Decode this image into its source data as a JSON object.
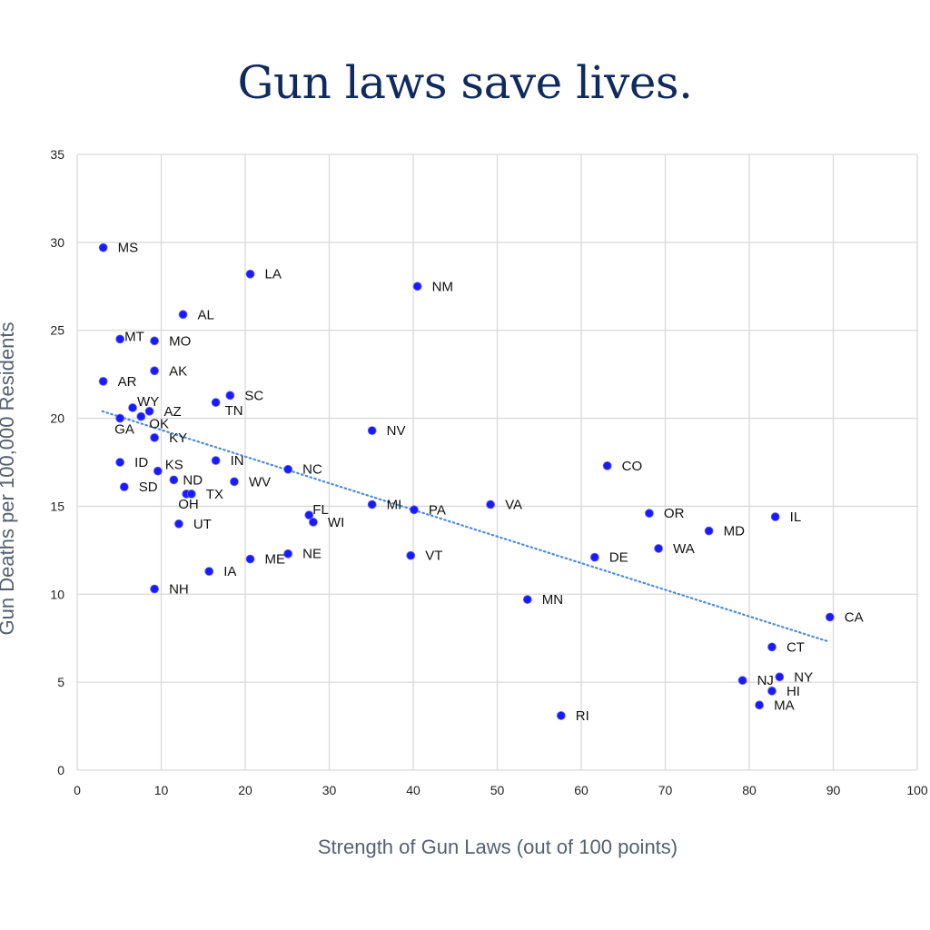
{
  "title": "Gun laws save lives.",
  "chart_data": {
    "type": "scatter",
    "title": "Gun laws save lives.",
    "xlabel": "Strength of Gun Laws (out of 100 points)",
    "ylabel": "Gun Deaths per 100,000 Residents",
    "xlim": [
      0,
      100
    ],
    "ylim": [
      0,
      35
    ],
    "xticks": [
      0,
      10,
      20,
      30,
      40,
      50,
      60,
      70,
      80,
      90,
      100
    ],
    "yticks": [
      0,
      5,
      10,
      15,
      20,
      25,
      30,
      35
    ],
    "grid": true,
    "point_color": "#1a1aff",
    "trendline": {
      "type": "linear",
      "style": "dotted",
      "color": "#4a8be0",
      "x": [
        3,
        89.5
      ],
      "y": [
        20.4,
        7.3
      ]
    },
    "points": [
      {
        "label": "MS",
        "x": 3.1,
        "y": 29.7
      },
      {
        "label": "LA",
        "x": 20.6,
        "y": 28.2
      },
      {
        "label": "NM",
        "x": 40.5,
        "y": 27.5
      },
      {
        "label": "AL",
        "x": 12.6,
        "y": 25.9
      },
      {
        "label": "MT",
        "x": 5.1,
        "y": 24.5
      },
      {
        "label": "MO",
        "x": 9.2,
        "y": 24.4
      },
      {
        "label": "AK",
        "x": 9.2,
        "y": 22.7
      },
      {
        "label": "AR",
        "x": 3.1,
        "y": 22.1
      },
      {
        "label": "SC",
        "x": 18.2,
        "y": 21.3
      },
      {
        "label": "TN",
        "x": 16.5,
        "y": 20.9
      },
      {
        "label": "WY",
        "x": 6.6,
        "y": 20.6
      },
      {
        "label": "AZ",
        "x": 8.6,
        "y": 20.4
      },
      {
        "label": "GA",
        "x": 5.1,
        "y": 20.0
      },
      {
        "label": "OK",
        "x": 7.6,
        "y": 20.1
      },
      {
        "label": "NV",
        "x": 35.1,
        "y": 19.3
      },
      {
        "label": "KY",
        "x": 9.2,
        "y": 18.9
      },
      {
        "label": "ID",
        "x": 5.1,
        "y": 17.5
      },
      {
        "label": "KS",
        "x": 9.6,
        "y": 17.0
      },
      {
        "label": "IN",
        "x": 16.5,
        "y": 17.6
      },
      {
        "label": "NC",
        "x": 25.1,
        "y": 17.1
      },
      {
        "label": "CO",
        "x": 63.1,
        "y": 17.3
      },
      {
        "label": "ND",
        "x": 11.5,
        "y": 16.5
      },
      {
        "label": "WV",
        "x": 18.7,
        "y": 16.4
      },
      {
        "label": "SD",
        "x": 5.6,
        "y": 16.1
      },
      {
        "label": "OH",
        "x": 13.0,
        "y": 15.7
      },
      {
        "label": "TX",
        "x": 13.6,
        "y": 15.7
      },
      {
        "label": "MI",
        "x": 35.1,
        "y": 15.1
      },
      {
        "label": "VA",
        "x": 49.2,
        "y": 15.1
      },
      {
        "label": "PA",
        "x": 40.1,
        "y": 14.8
      },
      {
        "label": "FL",
        "x": 27.6,
        "y": 14.5
      },
      {
        "label": "WI",
        "x": 28.1,
        "y": 14.1
      },
      {
        "label": "OR",
        "x": 68.1,
        "y": 14.6
      },
      {
        "label": "IL",
        "x": 83.1,
        "y": 14.4
      },
      {
        "label": "UT",
        "x": 12.1,
        "y": 14.0
      },
      {
        "label": "MD",
        "x": 75.2,
        "y": 13.6
      },
      {
        "label": "WA",
        "x": 69.2,
        "y": 12.6
      },
      {
        "label": "VT",
        "x": 39.7,
        "y": 12.2
      },
      {
        "label": "DE",
        "x": 61.6,
        "y": 12.1
      },
      {
        "label": "NE",
        "x": 25.1,
        "y": 12.3
      },
      {
        "label": "ME",
        "x": 20.6,
        "y": 12.0
      },
      {
        "label": "IA",
        "x": 15.7,
        "y": 11.3
      },
      {
        "label": "NH",
        "x": 9.2,
        "y": 10.3
      },
      {
        "label": "MN",
        "x": 53.6,
        "y": 9.7
      },
      {
        "label": "CA",
        "x": 89.6,
        "y": 8.7
      },
      {
        "label": "CT",
        "x": 82.7,
        "y": 7.0
      },
      {
        "label": "NJ",
        "x": 79.2,
        "y": 5.1
      },
      {
        "label": "NY",
        "x": 83.6,
        "y": 5.3
      },
      {
        "label": "HI",
        "x": 82.7,
        "y": 4.5
      },
      {
        "label": "MA",
        "x": 81.2,
        "y": 3.7
      },
      {
        "label": "RI",
        "x": 57.6,
        "y": 3.1
      }
    ]
  }
}
